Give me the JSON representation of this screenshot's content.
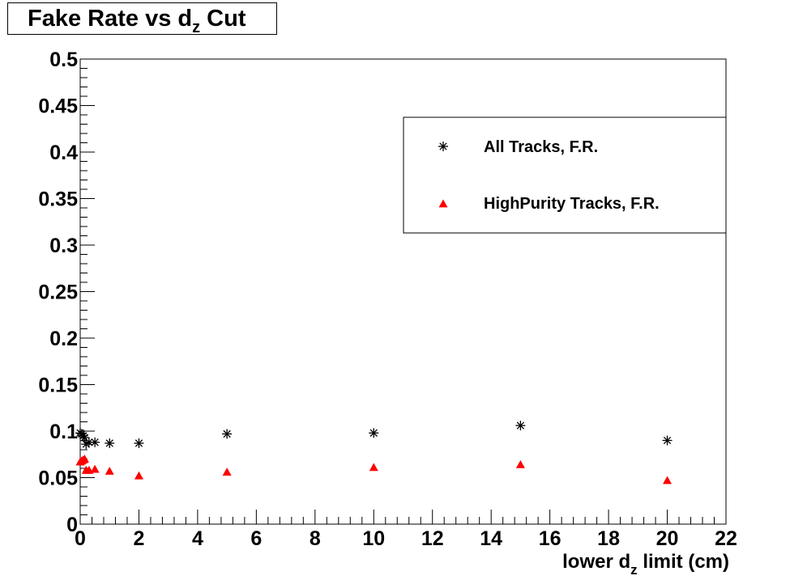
{
  "chart_data": {
    "type": "scatter",
    "title_main": "Fake Rate vs d",
    "title_sub": "z",
    "title_tail": " Cut",
    "xlabel_main": "lower d",
    "xlabel_sub": "z",
    "xlabel_tail": " limit (cm)",
    "ylabel": "",
    "xlim": [
      0,
      22
    ],
    "ylim": [
      0,
      0.5
    ],
    "x_ticks": [
      "0",
      "2",
      "4",
      "6",
      "8",
      "10",
      "12",
      "14",
      "16",
      "18",
      "20",
      "22"
    ],
    "y_ticks": [
      "0",
      "0.05",
      "0.1",
      "0.15",
      "0.2",
      "0.25",
      "0.3",
      "0.35",
      "0.4",
      "0.45",
      "0.5"
    ],
    "grid": false,
    "legend_position": "top-right",
    "series": [
      {
        "name": "All Tracks, F.R.",
        "marker": "asterisk",
        "color": "#000000",
        "x": [
          0,
          0.05,
          0.1,
          0.15,
          0.2,
          0.3,
          0.5,
          1,
          2,
          5,
          10,
          15,
          20
        ],
        "y": [
          0.098,
          0.097,
          0.095,
          0.093,
          0.086,
          0.088,
          0.088,
          0.087,
          0.087,
          0.097,
          0.098,
          0.106,
          0.09
        ]
      },
      {
        "name": "HighPurity Tracks, F.R.",
        "marker": "triangle",
        "color": "#ff0000",
        "x": [
          0,
          0.05,
          0.1,
          0.15,
          0.2,
          0.3,
          0.5,
          1,
          2,
          5,
          10,
          15,
          20
        ],
        "y": [
          0.067,
          0.068,
          0.069,
          0.07,
          0.058,
          0.058,
          0.059,
          0.057,
          0.052,
          0.056,
          0.061,
          0.064,
          0.047
        ]
      }
    ]
  }
}
